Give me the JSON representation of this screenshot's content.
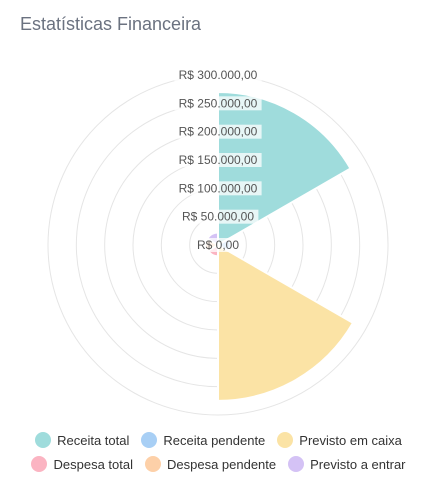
{
  "header": {
    "title": "Estatísticas Financeira"
  },
  "chart_data": {
    "type": "polarArea",
    "title": "Estatísticas Financeira",
    "categories": [
      "Receita total",
      "Receita pendente",
      "Previsto em caixa",
      "Despesa total",
      "Despesa pendente",
      "Previsto a entrar"
    ],
    "values": [
      270000,
      22000,
      275000,
      20000,
      22000,
      22000
    ],
    "colors": [
      "#9fdcdc",
      "#a8cff5",
      "#fbe3a5",
      "#fbb4c2",
      "#fdd0a8",
      "#d4c2f5"
    ],
    "rlim": [
      0,
      300000
    ],
    "r_ticks": [
      "R$ 0,00",
      "R$ 50.000,00",
      "R$ 100.000,00",
      "R$ 150.000,00",
      "R$ 200.000,00",
      "R$ 250.000,00",
      "R$ 300.000,00"
    ],
    "legend_position": "bottom",
    "grid": true
  }
}
